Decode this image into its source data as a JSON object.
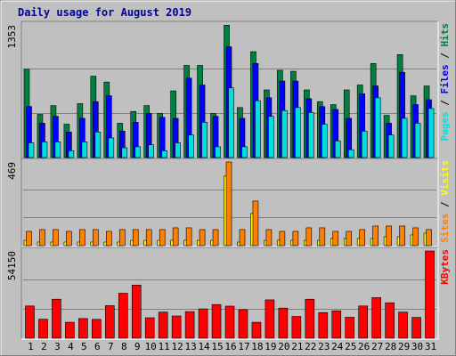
{
  "chart_data": {
    "type": "bar",
    "title": "Daily usage for August 2019",
    "days": [
      "1",
      "2",
      "3",
      "4",
      "5",
      "6",
      "7",
      "8",
      "9",
      "10",
      "11",
      "12",
      "13",
      "14",
      "15",
      "16",
      "17",
      "18",
      "19",
      "20",
      "21",
      "22",
      "23",
      "24",
      "25",
      "26",
      "27",
      "28",
      "29",
      "30",
      "31"
    ],
    "weekend_days": [
      "3",
      "4",
      "10",
      "11",
      "17",
      "18",
      "24",
      "25",
      "31"
    ],
    "panels": [
      {
        "name": "requests",
        "max_label": "1353",
        "ymax": 1353,
        "series": [
          {
            "name": "Hits",
            "color": "#008040",
            "values": [
              900,
              440,
              530,
              340,
              550,
              830,
              770,
              350,
              470,
              530,
              450,
              680,
              940,
              940,
              450,
              1350,
              510,
              1080,
              690,
              890,
              880,
              690,
              570,
              540,
              690,
              740,
              960,
              430,
              1050,
              630,
              730
            ]
          },
          {
            "name": "Files",
            "color": "#0000ff",
            "values": [
              520,
              350,
              420,
              260,
              400,
              570,
              630,
              270,
              360,
              450,
              410,
              400,
              810,
              740,
              420,
              1130,
              400,
              960,
              610,
              780,
              780,
              600,
              520,
              490,
              400,
              650,
              730,
              350,
              870,
              540,
              590
            ]
          },
          {
            "name": "Pages",
            "color": "#00e0e0",
            "values": [
              150,
              160,
              160,
              70,
              160,
              260,
              200,
              100,
              110,
              130,
              70,
              150,
              230,
              360,
              110,
              710,
              110,
              580,
              420,
              480,
              510,
              460,
              340,
              170,
              80,
              270,
              610,
              230,
              400,
              350,
              500
            ]
          }
        ]
      },
      {
        "name": "sites",
        "max_label": "469",
        "ymax": 469,
        "series": [
          {
            "name": "Visits",
            "color": "#ffff00",
            "values": [
              30,
              20,
              20,
              20,
              20,
              20,
              20,
              20,
              30,
              30,
              30,
              30,
              30,
              30,
              30,
              390,
              20,
              180,
              30,
              30,
              30,
              30,
              30,
              40,
              40,
              40,
              40,
              50,
              50,
              60,
              70
            ]
          },
          {
            "name": "Sites",
            "color": "#ff8000",
            "values": [
              80,
              90,
              90,
              80,
              90,
              90,
              80,
              90,
              90,
              90,
              90,
              100,
              100,
              90,
              90,
              469,
              90,
              250,
              90,
              80,
              80,
              100,
              100,
              80,
              80,
              90,
              110,
              110,
              110,
              100,
              90
            ]
          }
        ]
      },
      {
        "name": "kbytes",
        "max_label": "54150",
        "ymax": 54150,
        "series": [
          {
            "name": "KBytes",
            "color": "#ff0000",
            "values": [
              20000,
              11800,
              24200,
              9900,
              12200,
              11700,
              20200,
              27900,
              33000,
              12700,
              16200,
              13800,
              16500,
              18200,
              20900,
              19900,
              17700,
              9900,
              23800,
              18700,
              13500,
              24200,
              15900,
              17000,
              13000,
              20000,
              25200,
              22000,
              16200,
              12900,
              54150
            ]
          }
        ]
      }
    ]
  },
  "legend_text": {
    "requests": [
      {
        "label": "Pages",
        "color": "#00e0e0"
      },
      {
        "label": "/",
        "color": "#000000"
      },
      {
        "label": "Files",
        "color": "#0000ff"
      },
      {
        "label": "/",
        "color": "#000000"
      },
      {
        "label": "Hits",
        "color": "#008040"
      }
    ],
    "sites": [
      {
        "label": "Sites",
        "color": "#ff8000"
      },
      {
        "label": "/",
        "color": "#000000"
      },
      {
        "label": "Visits",
        "color": "#ffff00"
      }
    ],
    "kbytes": [
      {
        "label": "KBytes",
        "color": "#ff0000"
      }
    ]
  },
  "colors": {
    "background": "#c0c0c0",
    "title": "#0000a0",
    "weekend_label": "#008040",
    "weekday_label": "#000000",
    "grid": "#808080"
  }
}
